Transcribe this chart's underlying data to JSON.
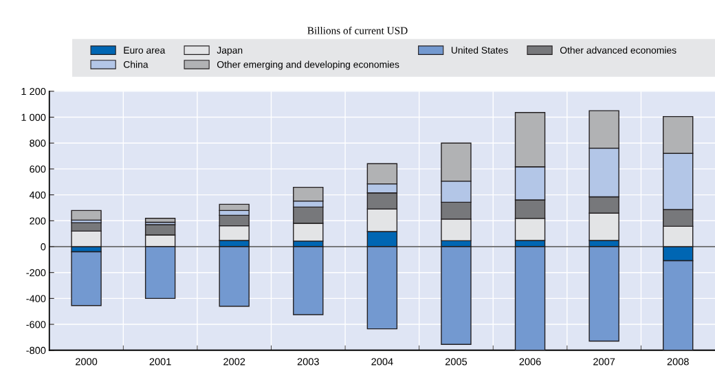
{
  "chart_data": {
    "type": "bar",
    "subtitle": "Billions of current USD",
    "stacked": true,
    "categories": [
      "2000",
      "2001",
      "2002",
      "2003",
      "2004",
      "2005",
      "2006",
      "2007",
      "2008"
    ],
    "series": [
      {
        "name": "Euro area",
        "color": "#0066b3",
        "values": [
          -40,
          null,
          48,
          43,
          117,
          46,
          48,
          48,
          -109
        ]
      },
      {
        "name": "Japan",
        "color": "#e3e4e6",
        "values": [
          120,
          90,
          113,
          137,
          174,
          167,
          170,
          211,
          157
        ]
      },
      {
        "name": "United States",
        "color": "#7399d0",
        "values": [
          -415,
          -400,
          -460,
          -525,
          -635,
          -755,
          -800,
          -730,
          -690
        ]
      },
      {
        "name": "Other advanced economies",
        "color": "#77787b",
        "values": [
          65,
          80,
          81,
          126,
          124,
          130,
          143,
          126,
          130
        ]
      },
      {
        "name": "China",
        "color": "#b3c6e7",
        "values": [
          20,
          18,
          37,
          46,
          70,
          163,
          256,
          376,
          433
        ]
      },
      {
        "name": "Other emerging and developing economies",
        "color": "#b1b2b4",
        "values": [
          74,
          31,
          48,
          106,
          156,
          294,
          419,
          289,
          285
        ]
      }
    ],
    "ylim": [
      -800,
      1200
    ],
    "yticks": [
      {
        "value": -800,
        "label": "-800"
      },
      {
        "value": -600,
        "label": "-600"
      },
      {
        "value": -400,
        "label": "-400"
      },
      {
        "value": -200,
        "label": "-200"
      },
      0,
      200,
      400,
      600,
      800,
      {
        "value": 1000,
        "label": "1 000"
      },
      {
        "value": 1200,
        "label": "1 200"
      }
    ],
    "grid": true,
    "legend": "top"
  }
}
